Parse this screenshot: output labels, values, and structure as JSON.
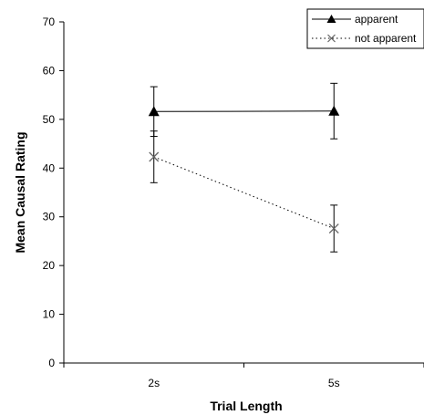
{
  "chart_data": {
    "type": "line",
    "title": "",
    "xlabel": "Trial Length",
    "ylabel": "Mean Causal Rating",
    "categories": [
      "2s",
      "5s"
    ],
    "ylim": [
      0,
      70
    ],
    "yticks": [
      0,
      10,
      20,
      30,
      40,
      50,
      60,
      70
    ],
    "grid": false,
    "legend_position": "top-right",
    "series": [
      {
        "name": "apparent",
        "values": [
          51.6,
          51.7
        ],
        "error": [
          5.1,
          5.7
        ],
        "marker": "triangle",
        "line": "solid",
        "color": "#000000"
      },
      {
        "name": "not apparent",
        "values": [
          42.3,
          27.6
        ],
        "error": [
          5.3,
          4.8
        ],
        "marker": "x",
        "line": "dotted",
        "color": "#000000"
      }
    ]
  }
}
